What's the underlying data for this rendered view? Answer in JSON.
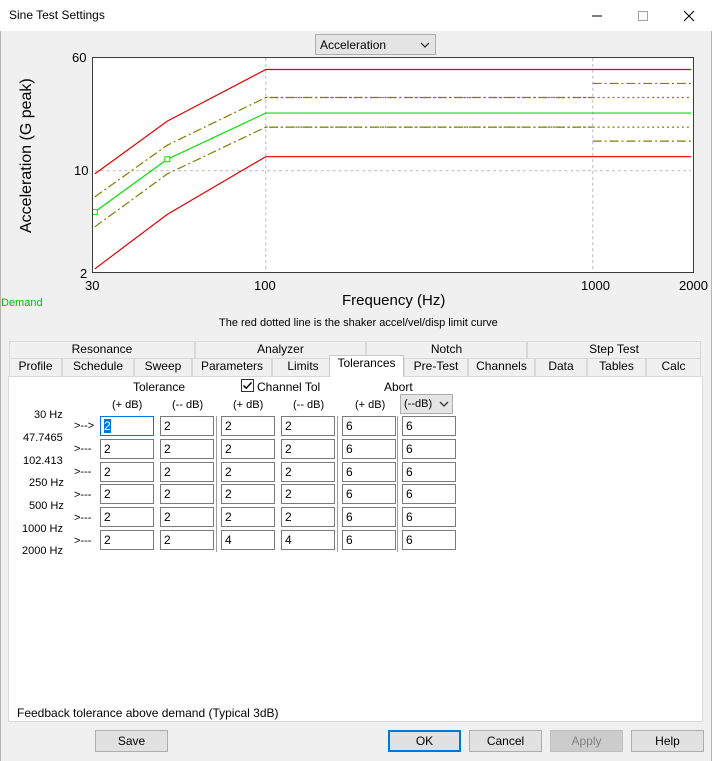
{
  "window": {
    "title": "Sine Test Settings"
  },
  "plot_selector": {
    "value": "Acceleration"
  },
  "chart": {
    "ylabel": "Acceleration (G peak)",
    "xlabel": "Frequency (Hz)",
    "x_ticks": [
      "30",
      "100",
      "1000",
      "2000"
    ],
    "y_ticks": [
      "60",
      "10",
      "2"
    ],
    "demand_label": "Demand",
    "note": "The red dotted line is the shaker accel/vel/disp limit curve"
  },
  "chart_data": {
    "type": "line",
    "xscale": "log",
    "yscale": "log",
    "xlim": [
      30,
      2000
    ],
    "ylim": [
      2,
      60
    ],
    "series": [
      {
        "name": "",
        "color": "#00e000",
        "style": "solid",
        "x": [
          30,
          50,
          100,
          2000
        ],
        "y": [
          5.2,
          12,
          25,
          25
        ]
      },
      {
        "name": "",
        "color": "#7f7f00",
        "style": "dashdot",
        "x": [
          30,
          50,
          100,
          1000
        ],
        "y": [
          6.6,
          15,
          32,
          32
        ]
      },
      {
        "name": "",
        "color": "#7f7f00",
        "style": "dashdot",
        "x": [
          30,
          50,
          100,
          1000
        ],
        "y": [
          4.1,
          9.5,
          20,
          20
        ]
      },
      {
        "name": "",
        "color": "#7f7f00",
        "style": "dashdot",
        "x": [
          1000,
          2000
        ],
        "y": [
          40,
          40
        ]
      },
      {
        "name": "",
        "color": "#7f7f00",
        "style": "dashdot",
        "x": [
          1000,
          2000
        ],
        "y": [
          16,
          16
        ]
      },
      {
        "name": "",
        "color": "#7f7f00",
        "style": "dotted",
        "x": [
          100,
          2000
        ],
        "y": [
          32,
          32
        ]
      },
      {
        "name": "",
        "color": "#7f7f00",
        "style": "dotted",
        "x": [
          100,
          2000
        ],
        "y": [
          20,
          20
        ]
      },
      {
        "name": "",
        "color": "#dd0000",
        "style": "solid",
        "x": [
          30,
          50,
          100,
          2000
        ],
        "y": [
          9.5,
          22,
          50,
          50
        ]
      },
      {
        "name": "",
        "color": "#dd0000",
        "style": "solid",
        "x": [
          30,
          50,
          100,
          2000
        ],
        "y": [
          2.1,
          5,
          12.5,
          12.5
        ]
      }
    ],
    "grid": true
  },
  "tabs": {
    "row1": [
      "Resonance",
      "Analyzer",
      "Notch",
      "Step Test"
    ],
    "row2": [
      "Profile",
      "Schedule",
      "Sweep",
      "Parameters",
      "Limits",
      "Tolerances",
      "Pre-Test",
      "Channels",
      "Data",
      "Tables",
      "Calc"
    ],
    "active": "Tolerances"
  },
  "tolerances": {
    "tolerance_header": "Tolerance",
    "channel_tol_label": "Channel Tol",
    "channel_tol_checked": true,
    "abort_header": "Abort",
    "col_headers": [
      "(+ dB)",
      "(-- dB)",
      "(+ dB)",
      "(-- dB)",
      "(+ dB)"
    ],
    "abort_minus_select": "(--dB)",
    "freqs": [
      "30 Hz",
      "47.7465",
      "102.413",
      "250 Hz",
      "500 Hz",
      "1000 Hz",
      "2000 Hz"
    ],
    "row_arrows": [
      ">-->",
      ">---",
      ">---",
      ">---",
      ">---",
      ">---"
    ],
    "rows": [
      [
        "2",
        "2",
        "2",
        "2",
        "6",
        "6"
      ],
      [
        "2",
        "2",
        "2",
        "2",
        "6",
        "6"
      ],
      [
        "2",
        "2",
        "2",
        "2",
        "6",
        "6"
      ],
      [
        "2",
        "2",
        "2",
        "2",
        "6",
        "6"
      ],
      [
        "2",
        "2",
        "2",
        "2",
        "6",
        "6"
      ],
      [
        "2",
        "2",
        "4",
        "4",
        "6",
        "6"
      ]
    ],
    "hint": "Feedback tolerance above demand (Typical 3dB)"
  },
  "buttons": {
    "save": "Save",
    "ok": "OK",
    "cancel": "Cancel",
    "apply": "Apply",
    "help": "Help"
  }
}
